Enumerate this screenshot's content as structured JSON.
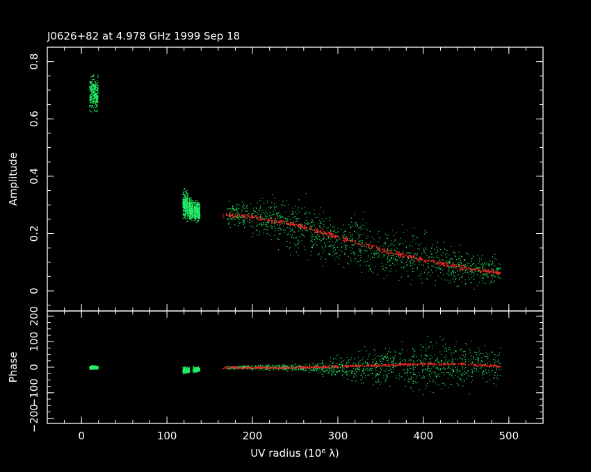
{
  "chart_data": [
    {
      "type": "scatter",
      "panel": "amplitude",
      "title": "J0626+82 at 4.978 GHz 1999 Sep 18",
      "ylabel": "Amplitude",
      "xlabel": "",
      "xlim": [
        -40,
        540
      ],
      "ylim": [
        -0.07,
        0.85
      ],
      "yticks": [
        "0",
        "0.2",
        "0.4",
        "0.6",
        "0.8"
      ],
      "xticks": [
        "0",
        "100",
        "200",
        "300",
        "400",
        "500"
      ],
      "colors": {
        "data": "#22ee66",
        "model": "#ee2222",
        "frame": "#ffffff"
      },
      "series": [
        {
          "role": "observed",
          "clusters": [
            {
              "x": [
                9,
                19
              ],
              "y_center": 0.69,
              "y_spread": 0.05
            },
            {
              "x": [
                118,
                124
              ],
              "y_center": 0.3,
              "y_spread": 0.04
            },
            {
              "x": [
                125,
                130
              ],
              "y_center": 0.285,
              "y_spread": 0.03
            },
            {
              "x": [
                131,
                138
              ],
              "y_center": 0.28,
              "y_spread": 0.03
            }
          ],
          "scatter_band": {
            "x": [
              170,
              200,
              250,
              300,
              350,
              400,
              450,
              490
            ],
            "y_center": [
              0.27,
              0.26,
              0.23,
              0.18,
              0.14,
              0.11,
              0.08,
              0.07
            ],
            "y_spread": [
              0.03,
              0.05,
              0.07,
              0.07,
              0.07,
              0.06,
              0.05,
              0.04
            ]
          }
        },
        {
          "role": "model",
          "x": [
            165,
            200,
            250,
            300,
            350,
            400,
            450,
            490
          ],
          "y": [
            0.268,
            0.258,
            0.233,
            0.19,
            0.145,
            0.11,
            0.08,
            0.065
          ]
        }
      ]
    },
    {
      "type": "scatter",
      "panel": "phase",
      "title": "",
      "ylabel": "Phase",
      "xlabel": "UV radius  (10⁶ λ)",
      "xlim": [
        -40,
        540
      ],
      "ylim": [
        -220,
        220
      ],
      "yticks": [
        "−200",
        "−100",
        "0",
        "100",
        "200"
      ],
      "xticks": [
        "0",
        "100",
        "200",
        "300",
        "400",
        "500"
      ],
      "series": [
        {
          "role": "observed",
          "clusters": [
            {
              "x": [
                9,
                19
              ],
              "y_center": 0,
              "y_spread": 6
            },
            {
              "x": [
                118,
                126
              ],
              "y_center": -10,
              "y_spread": 10
            },
            {
              "x": [
                130,
                138
              ],
              "y_center": -8,
              "y_spread": 8
            }
          ],
          "scatter_band": {
            "x": [
              170,
              250,
              300,
              350,
              400,
              450,
              490
            ],
            "y_center": [
              0,
              0,
              0,
              5,
              10,
              10,
              0
            ],
            "y_spread": [
              5,
              10,
              30,
              60,
              80,
              80,
              60
            ]
          }
        },
        {
          "role": "model",
          "x": [
            165,
            250,
            300,
            350,
            400,
            450,
            490
          ],
          "y": [
            0,
            0,
            5,
            10,
            15,
            15,
            5
          ]
        }
      ]
    }
  ]
}
